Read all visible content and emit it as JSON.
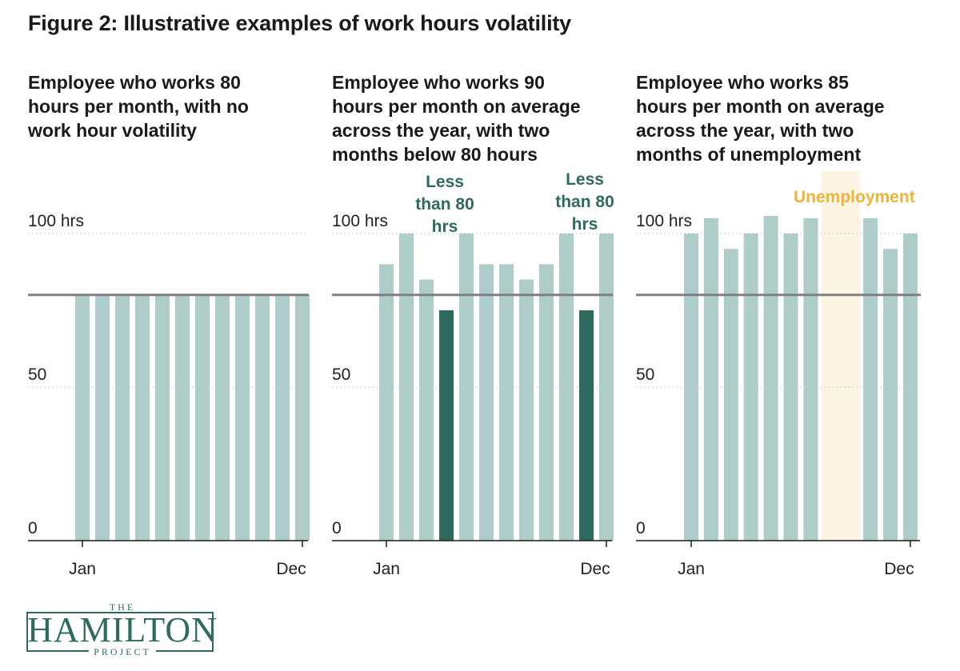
{
  "title": "Figure 2: Illustrative examples of work hours volatility",
  "colors": {
    "bar": "#aecdc8",
    "bar_highlight": "#2e6b5e",
    "reference_line": "#808080",
    "unemployment_band": "#fdf5e4",
    "unemployment_text": "#f0b33a"
  },
  "chart_data": [
    {
      "type": "bar",
      "title": "Employee who works 80 hours per month, with no work hour volatility",
      "title_lines": [
        "Employee who works 80",
        "hours per month, with no",
        "work hour volatility"
      ],
      "x_start_label": "Jan",
      "x_end_label": "Dec",
      "values": [
        80,
        80,
        80,
        80,
        80,
        80,
        80,
        80,
        80,
        80,
        80,
        80
      ],
      "highlight": [],
      "reference_line": 80,
      "ylim": [
        0,
        100
      ],
      "yticks": [
        {
          "value": 100,
          "label": "100 hrs"
        },
        {
          "value": 50,
          "label": "50"
        },
        {
          "value": 0,
          "label": "0"
        }
      ],
      "annotations": []
    },
    {
      "type": "bar",
      "title": "Employee who works 90 hours per month on average across the year, with two months below 80 hours",
      "title_lines": [
        "Employee who works 90",
        "hours per month on average",
        "across the year, with two",
        "months below 80 hours"
      ],
      "x_start_label": "Jan",
      "x_end_label": "Dec",
      "values": [
        90,
        100,
        85,
        75,
        100,
        90,
        90,
        85,
        90,
        100,
        75,
        100
      ],
      "highlight": [
        3,
        10
      ],
      "reference_line": 80,
      "ylim": [
        0,
        100
      ],
      "yticks": [
        {
          "value": 100,
          "label": "100 hrs"
        },
        {
          "value": 50,
          "label": "50"
        },
        {
          "value": 0,
          "label": "0"
        }
      ],
      "annotations": [
        {
          "month_index": 3,
          "lines": [
            "Less",
            "than 80",
            "hrs"
          ]
        },
        {
          "month_index": 10,
          "lines": [
            "Less",
            "than 80",
            "hrs"
          ]
        }
      ]
    },
    {
      "type": "bar",
      "title": "Employee who works 85 hours per month on average across the year, with two months of unemployment",
      "title_lines": [
        "Employee who works 85",
        "hours per month on average",
        "across the year, with two",
        "months of unemployment"
      ],
      "x_start_label": "Jan",
      "x_end_label": "Dec",
      "values": [
        100,
        105,
        95,
        100,
        110,
        100,
        105,
        0,
        0,
        105,
        95,
        100
      ],
      "highlight": [],
      "reference_line": 80,
      "ylim": [
        0,
        100
      ],
      "yticks": [
        {
          "value": 100,
          "label": "100 hrs"
        },
        {
          "value": 50,
          "label": "50"
        },
        {
          "value": 0,
          "label": "0"
        }
      ],
      "unemployment_months": [
        7,
        8
      ],
      "unemployment_label": "Unemployment",
      "annotations": []
    }
  ],
  "logo": {
    "top": "THE",
    "name": "HAMILTON",
    "bottom": "PROJECT"
  }
}
